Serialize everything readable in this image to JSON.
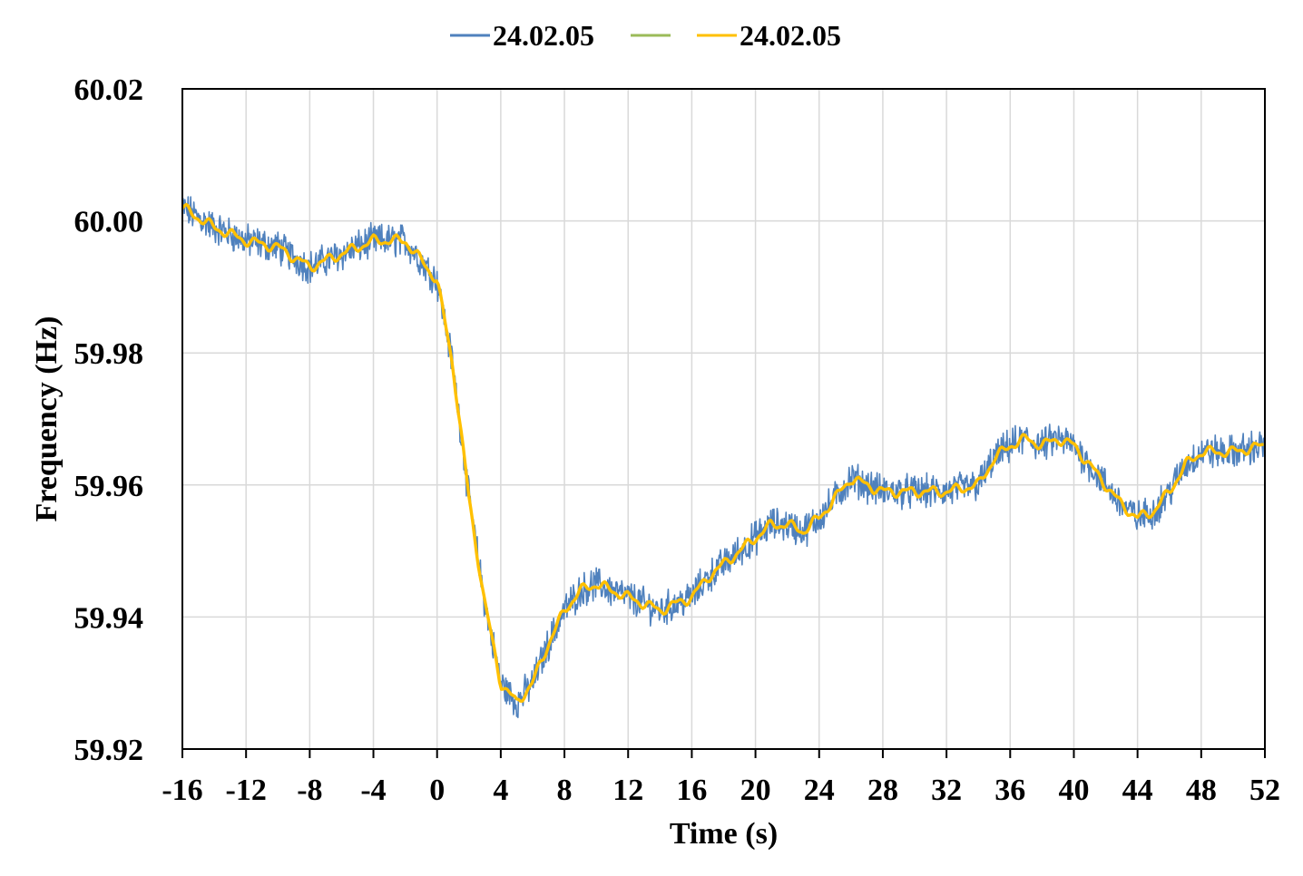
{
  "chart_data": {
    "type": "line",
    "title": "",
    "xlabel": "Time (s)",
    "ylabel": "Frequency (Hz)",
    "xlim": [
      -16,
      52
    ],
    "ylim": [
      59.92,
      60.02
    ],
    "xticks": [
      "-16",
      "-12",
      "-8",
      "-4",
      "0",
      "4",
      "8",
      "12",
      "16",
      "20",
      "24",
      "28",
      "32",
      "36",
      "40",
      "44",
      "48",
      "52"
    ],
    "yticks": [
      "59.92",
      "59.94",
      "59.96",
      "59.98",
      "60.00",
      "60.02"
    ],
    "grid": true,
    "legend_position": "top-center",
    "series": [
      {
        "name": "24.02.05",
        "color": "#4f81bd",
        "style": "noisy-raw",
        "x": [
          -16,
          -14,
          -12,
          -10,
          -8,
          -6,
          -4,
          -2,
          0,
          1,
          2,
          3,
          4,
          5,
          6,
          7,
          8,
          9,
          10,
          11,
          12,
          13,
          14,
          15,
          16,
          17,
          18,
          19,
          20,
          21,
          22,
          23,
          24,
          25,
          26,
          27,
          28,
          30,
          32,
          34,
          35,
          36,
          37,
          38,
          39,
          40,
          41,
          42,
          43,
          44,
          45,
          46,
          47,
          48,
          50,
          52
        ],
        "y": [
          60.002,
          59.999,
          59.997,
          59.996,
          59.993,
          59.995,
          59.997,
          59.997,
          59.991,
          59.978,
          59.958,
          59.942,
          59.93,
          59.927,
          59.93,
          59.936,
          59.941,
          59.944,
          59.945,
          59.944,
          59.943,
          59.942,
          59.941,
          59.942,
          59.943,
          59.946,
          59.948,
          59.95,
          59.952,
          59.954,
          59.954,
          59.953,
          59.955,
          59.958,
          59.961,
          59.96,
          59.959,
          59.959,
          59.959,
          59.96,
          59.964,
          59.966,
          59.967,
          59.966,
          59.967,
          59.966,
          59.963,
          59.96,
          59.957,
          59.955,
          59.956,
          59.959,
          59.963,
          59.965,
          59.965,
          59.966
        ]
      },
      {
        "name": "",
        "color": "#9bbb59",
        "style": "smooth",
        "x": [
          -16,
          -14,
          -12,
          -10,
          -8,
          -6,
          -4,
          -2,
          0,
          1,
          2,
          3,
          4,
          5,
          6,
          7,
          8,
          9,
          10,
          11,
          12,
          13,
          14,
          15,
          16,
          17,
          18,
          19,
          20,
          21,
          22,
          23,
          24,
          25,
          26,
          27,
          28,
          30,
          32,
          34,
          35,
          36,
          37,
          38,
          39,
          40,
          41,
          42,
          43,
          44,
          45,
          46,
          47,
          48,
          50,
          52
        ],
        "y": [
          60.002,
          59.999,
          59.997,
          59.996,
          59.993,
          59.995,
          59.997,
          59.997,
          59.991,
          59.978,
          59.958,
          59.942,
          59.93,
          59.927,
          59.93,
          59.936,
          59.941,
          59.944,
          59.945,
          59.944,
          59.943,
          59.942,
          59.941,
          59.942,
          59.943,
          59.946,
          59.948,
          59.95,
          59.952,
          59.954,
          59.954,
          59.953,
          59.955,
          59.958,
          59.961,
          59.96,
          59.959,
          59.959,
          59.959,
          59.96,
          59.964,
          59.966,
          59.967,
          59.966,
          59.967,
          59.966,
          59.963,
          59.96,
          59.957,
          59.955,
          59.956,
          59.959,
          59.963,
          59.965,
          59.965,
          59.966
        ]
      },
      {
        "name": "24.02.05",
        "color": "#ffc000",
        "style": "smooth",
        "x": [
          -16,
          -14,
          -12,
          -10,
          -8,
          -6,
          -4,
          -2,
          0,
          1,
          2,
          3,
          4,
          5,
          6,
          7,
          8,
          9,
          10,
          11,
          12,
          13,
          14,
          15,
          16,
          17,
          18,
          19,
          20,
          21,
          22,
          23,
          24,
          25,
          26,
          27,
          28,
          30,
          32,
          34,
          35,
          36,
          37,
          38,
          39,
          40,
          41,
          42,
          43,
          44,
          45,
          46,
          47,
          48,
          50,
          52
        ],
        "y": [
          60.002,
          59.999,
          59.997,
          59.996,
          59.993,
          59.995,
          59.997,
          59.997,
          59.991,
          59.978,
          59.958,
          59.942,
          59.93,
          59.927,
          59.93,
          59.936,
          59.941,
          59.944,
          59.945,
          59.944,
          59.943,
          59.942,
          59.941,
          59.942,
          59.943,
          59.946,
          59.948,
          59.95,
          59.952,
          59.954,
          59.954,
          59.953,
          59.955,
          59.958,
          59.961,
          59.96,
          59.959,
          59.959,
          59.959,
          59.96,
          59.964,
          59.966,
          59.967,
          59.966,
          59.967,
          59.966,
          59.963,
          59.96,
          59.957,
          59.955,
          59.956,
          59.959,
          59.963,
          59.965,
          59.965,
          59.966
        ]
      }
    ]
  }
}
